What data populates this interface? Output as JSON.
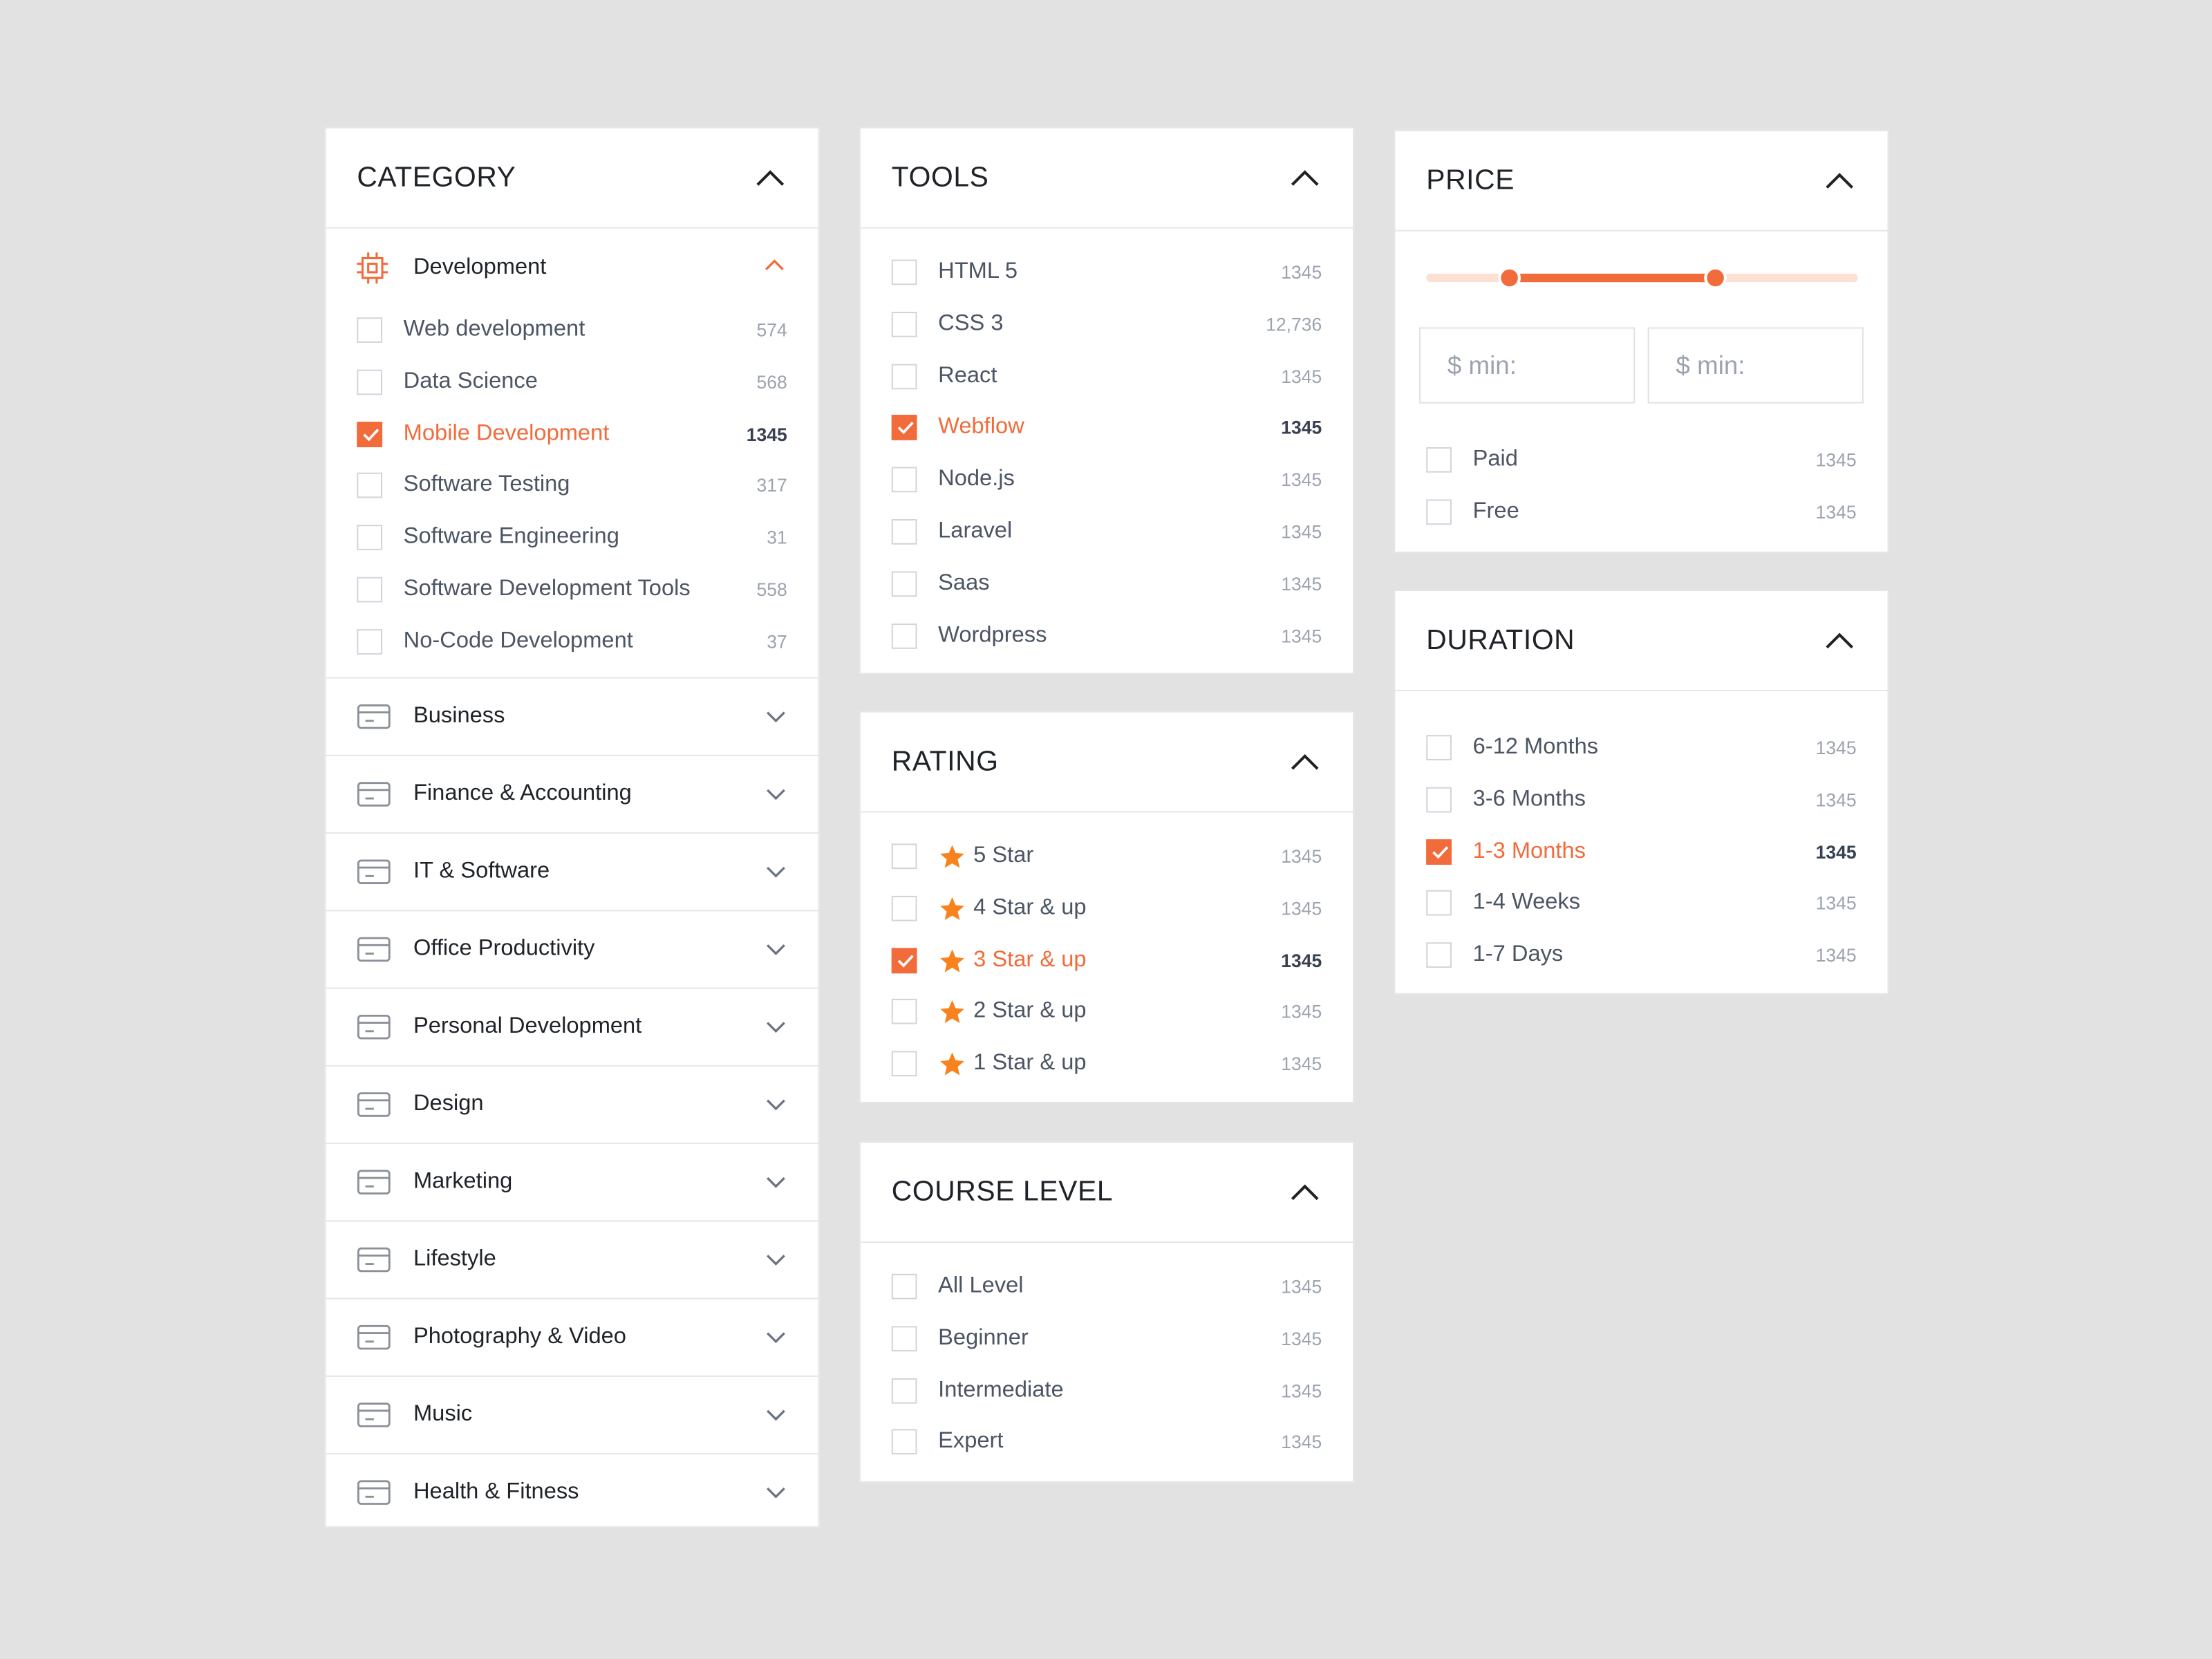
{
  "category": {
    "title": "CATEGORY",
    "expanded": {
      "label": "Development",
      "items": [
        {
          "label": "Web development",
          "count": "574",
          "checked": false
        },
        {
          "label": "Data Science",
          "count": "568",
          "checked": false
        },
        {
          "label": "Mobile Development",
          "count": "1345",
          "checked": true
        },
        {
          "label": "Software Testing",
          "count": "317",
          "checked": false
        },
        {
          "label": "Software Engineering",
          "count": "31",
          "checked": false
        },
        {
          "label": "Software Development Tools",
          "count": "558",
          "checked": false
        },
        {
          "label": "No-Code Development",
          "count": "37",
          "checked": false
        }
      ]
    },
    "groups": [
      "Business",
      "Finance & Accounting",
      "IT & Software",
      "Office Productivity",
      "Personal Development",
      "Design",
      "Marketing",
      "Lifestyle",
      "Photography & Video",
      "Music",
      "Health & Fitness"
    ]
  },
  "tools": {
    "title": "TOOLS",
    "items": [
      {
        "label": "HTML 5",
        "count": "1345",
        "checked": false
      },
      {
        "label": "CSS 3",
        "count": "12,736",
        "checked": false
      },
      {
        "label": "React",
        "count": "1345",
        "checked": false
      },
      {
        "label": "Webflow",
        "count": "1345",
        "checked": true
      },
      {
        "label": "Node.js",
        "count": "1345",
        "checked": false
      },
      {
        "label": "Laravel",
        "count": "1345",
        "checked": false
      },
      {
        "label": "Saas",
        "count": "1345",
        "checked": false
      },
      {
        "label": "Wordpress",
        "count": "1345",
        "checked": false
      }
    ]
  },
  "rating": {
    "title": "RATING",
    "items": [
      {
        "label": "5 Star",
        "count": "1345",
        "checked": false
      },
      {
        "label": "4 Star & up",
        "count": "1345",
        "checked": false
      },
      {
        "label": "3 Star & up",
        "count": "1345",
        "checked": true
      },
      {
        "label": "2 Star & up",
        "count": "1345",
        "checked": false
      },
      {
        "label": "1 Star & up",
        "count": "1345",
        "checked": false
      }
    ]
  },
  "course_level": {
    "title": "COURSE LEVEL",
    "items": [
      {
        "label": "All Level",
        "count": "1345",
        "checked": false
      },
      {
        "label": "Beginner",
        "count": "1345",
        "checked": false
      },
      {
        "label": "Intermediate",
        "count": "1345",
        "checked": false
      },
      {
        "label": "Expert",
        "count": "1345",
        "checked": false
      }
    ]
  },
  "price": {
    "title": "PRICE",
    "inputs": [
      "$ min:",
      "$ min:"
    ],
    "items": [
      {
        "label": "Paid",
        "count": "1345",
        "checked": false
      },
      {
        "label": "Free",
        "count": "1345",
        "checked": false
      }
    ]
  },
  "duration": {
    "title": "DURATION",
    "items": [
      {
        "label": "6-12 Months",
        "count": "1345",
        "checked": false
      },
      {
        "label": "3-6 Months",
        "count": "1345",
        "checked": false
      },
      {
        "label": "1-3 Months",
        "count": "1345",
        "checked": true
      },
      {
        "label": "1-4 Weeks",
        "count": "1345",
        "checked": false
      },
      {
        "label": "1-7 Days",
        "count": "1345",
        "checked": false
      }
    ]
  }
}
